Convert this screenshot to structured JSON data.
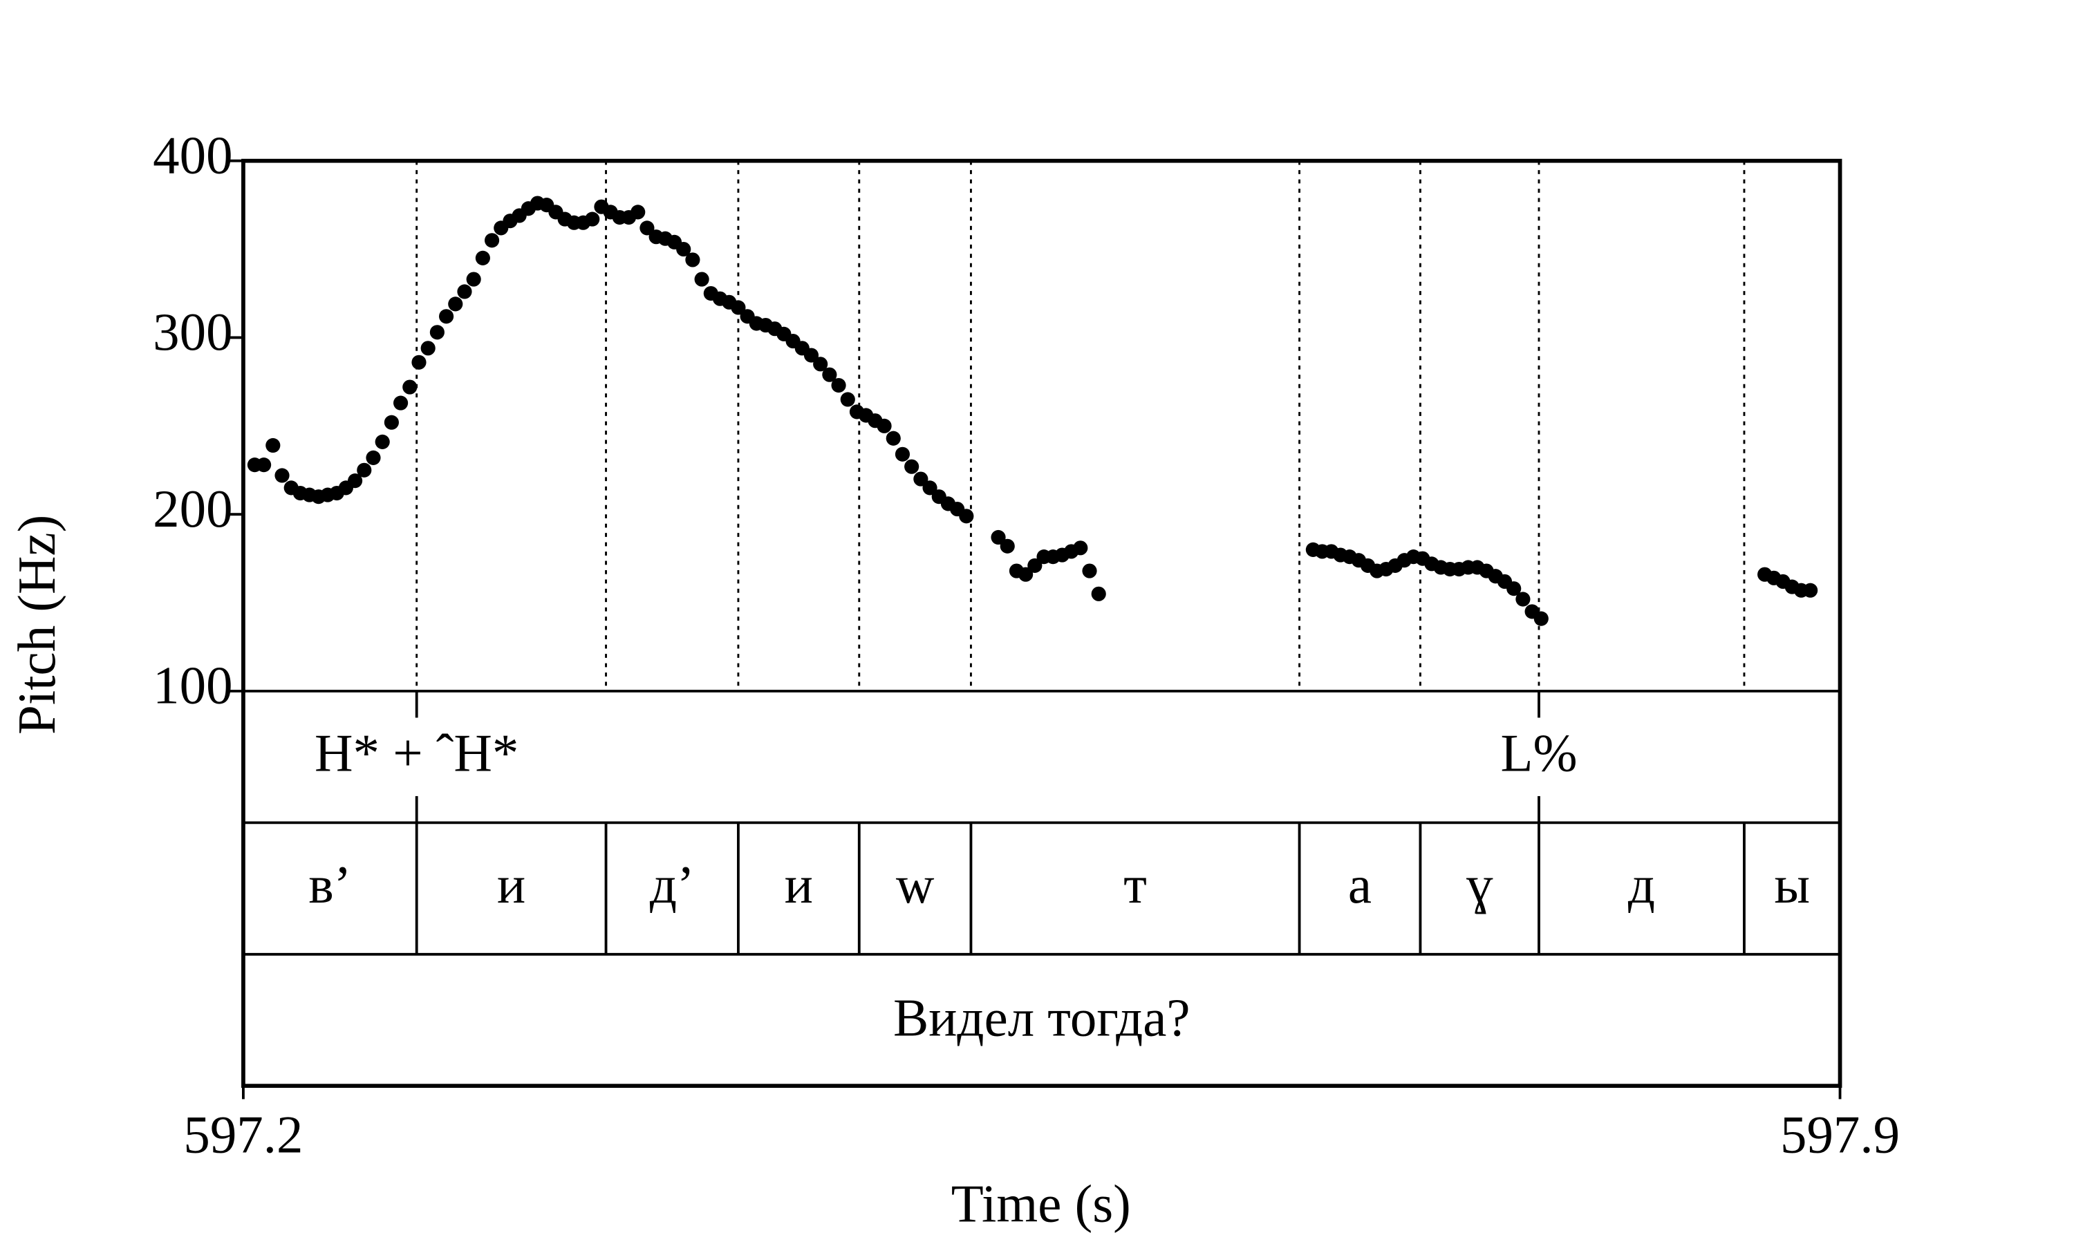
{
  "chart_data": {
    "type": "pitch",
    "ylabel": "Pitch (Hz)",
    "xlabel": "Time (s)",
    "xlim": [
      597.2,
      597.9
    ],
    "xticks": [
      597.2,
      597.9
    ],
    "ylim": [
      100,
      400
    ],
    "yticks": [
      100,
      200,
      300,
      400
    ],
    "color": "#000000",
    "x": [
      597.205,
      597.209,
      597.213,
      597.217,
      597.221,
      597.225,
      597.229,
      597.233,
      597.237,
      597.241,
      597.245,
      597.249,
      597.253,
      597.257,
      597.261,
      597.265,
      597.269,
      597.273,
      597.277,
      597.281,
      597.285,
      597.289,
      597.293,
      597.297,
      597.301,
      597.305,
      597.309,
      597.313,
      597.317,
      597.321,
      597.325,
      597.329,
      597.333,
      597.337,
      597.341,
      597.345,
      597.349,
      597.353,
      597.357,
      597.361,
      597.365,
      597.369,
      597.373,
      597.377,
      597.381,
      597.385,
      597.389,
      597.393,
      597.397,
      597.401,
      597.405,
      597.409,
      597.413,
      597.417,
      597.421,
      597.425,
      597.429,
      597.433,
      597.437,
      597.441,
      597.445,
      597.449,
      597.453,
      597.457,
      597.461,
      597.465,
      597.469,
      597.473,
      597.477,
      597.481,
      597.485,
      597.489,
      597.493,
      597.497,
      597.501,
      597.505,
      597.509,
      597.513,
      597.517,
      597.531,
      597.535,
      597.539,
      597.543,
      597.547,
      597.551,
      597.555,
      597.559,
      597.563,
      597.567,
      597.571,
      597.575,
      597.669,
      597.673,
      597.677,
      597.681,
      597.685,
      597.689,
      597.693,
      597.697,
      597.701,
      597.705,
      597.709,
      597.713,
      597.717,
      597.721,
      597.725,
      597.729,
      597.733,
      597.737,
      597.741,
      597.745,
      597.749,
      597.753,
      597.757,
      597.761,
      597.765,
      597.769,
      597.867,
      597.871,
      597.875,
      597.879,
      597.883,
      597.887
    ],
    "values": [
      228,
      228,
      239,
      222,
      215,
      212,
      211,
      210,
      211,
      212,
      215,
      219,
      225,
      232,
      241,
      252,
      263,
      272,
      286,
      294,
      303,
      312,
      319,
      326,
      333,
      345,
      355,
      362,
      366,
      369,
      373,
      376,
      375,
      371,
      367,
      365,
      365,
      367,
      374,
      371,
      368,
      368,
      371,
      362,
      357,
      356,
      354,
      350,
      344,
      333,
      325,
      322,
      320,
      317,
      312,
      308,
      307,
      305,
      302,
      298,
      294,
      290,
      285,
      279,
      273,
      265,
      258,
      256,
      253,
      250,
      243,
      234,
      227,
      220,
      215,
      210,
      206,
      203,
      199,
      187,
      182,
      168,
      166,
      171,
      176,
      176,
      177,
      179,
      181,
      168,
      155,
      180,
      179,
      179,
      177,
      176,
      174,
      171,
      168,
      169,
      171,
      174,
      176,
      175,
      172,
      170,
      169,
      169,
      170,
      170,
      168,
      165,
      162,
      158,
      152,
      145,
      141,
      166,
      164,
      162,
      159,
      157,
      157
    ],
    "tones": [
      {
        "time": 597.276,
        "label": "H* + ˆH*"
      },
      {
        "time": 597.768,
        "label": "L%"
      }
    ],
    "segments": {
      "boundaries": [
        597.276,
        597.359,
        597.417,
        597.47,
        597.519,
        597.663,
        597.716,
        597.768,
        597.858
      ],
      "labels": [
        "в’",
        "и",
        "д’",
        "и",
        "w",
        "т",
        "а",
        "ɣ",
        "д",
        "ы"
      ]
    },
    "sentence": "Видел тогда?"
  }
}
